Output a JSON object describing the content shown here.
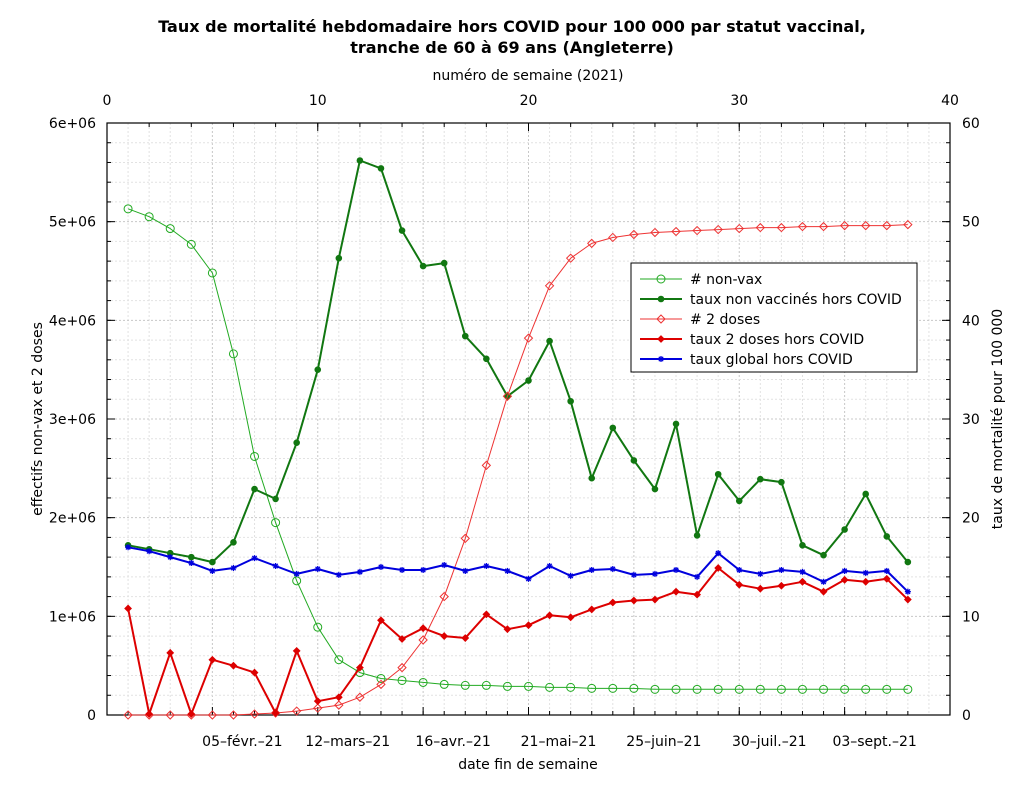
{
  "chart_data": {
    "type": "line",
    "title_line1": "Taux de mortalité hebdomadaire hors COVID pour 100 000 par statut vaccinal,",
    "title_line2": "tranche de 60 à 69 ans (Angleterre)",
    "top_xlabel": "numéro de semaine (2021)",
    "xlabel": "date fin de semaine",
    "ylabel_left": "effectifs non-vax et 2 doses",
    "ylabel_right": "taux de mortalité pour 100 000",
    "xlim": [
      0,
      40
    ],
    "ylim_left": [
      0,
      6000000
    ],
    "ylim_right": [
      0,
      60
    ],
    "top_ticks": [
      "0",
      "10",
      "20",
      "30",
      "40"
    ],
    "left_ticks": [
      "0",
      "1e+06",
      "2e+06",
      "3e+06",
      "4e+06",
      "5e+06",
      "6e+06"
    ],
    "right_ticks": [
      "0",
      "10",
      "20",
      "30",
      "40",
      "50",
      "60"
    ],
    "bottom_ticks": [
      {
        "week": 5,
        "label": "05–févr.–21"
      },
      {
        "week": 10,
        "label": "12–mars–21"
      },
      {
        "week": 15,
        "label": "16–avr.–21"
      },
      {
        "week": 20,
        "label": "21–mai–21"
      },
      {
        "week": 25,
        "label": "25–juin–21"
      },
      {
        "week": 30,
        "label": "30–juil.–21"
      },
      {
        "week": 35,
        "label": "03–sept.–21"
      }
    ],
    "grid": true,
    "legend_position": "right-center",
    "weeks": [
      1,
      2,
      3,
      4,
      5,
      6,
      7,
      8,
      9,
      10,
      11,
      12,
      13,
      14,
      15,
      16,
      17,
      18,
      19,
      20,
      21,
      22,
      23,
      24,
      25,
      26,
      27,
      28,
      29,
      30,
      31,
      32,
      33,
      34,
      35,
      36,
      37,
      38
    ],
    "series": [
      {
        "name": "# non-vax",
        "axis": "left",
        "color": "#22aa22",
        "marker": "circle-open",
        "width": 1,
        "values": [
          5130000,
          5050000,
          4930000,
          4770000,
          4480000,
          3660000,
          2620000,
          1950000,
          1360000,
          890000,
          560000,
          430000,
          370000,
          350000,
          330000,
          310000,
          300000,
          300000,
          290000,
          290000,
          280000,
          280000,
          270000,
          270000,
          270000,
          260000,
          260000,
          260000,
          260000,
          260000,
          260000,
          260000,
          260000,
          260000,
          260000,
          260000,
          260000,
          260000
        ]
      },
      {
        "name": "taux non vaccinés hors COVID",
        "axis": "right",
        "color": "#117711",
        "marker": "dot",
        "width": 2,
        "values": [
          17.2,
          16.8,
          16.4,
          16.0,
          15.5,
          17.5,
          22.9,
          21.9,
          27.6,
          35.0,
          46.3,
          56.2,
          55.4,
          49.1,
          45.5,
          45.8,
          38.4,
          36.1,
          32.3,
          33.9,
          37.9,
          31.8,
          24.0,
          29.1,
          25.8,
          22.9,
          29.5,
          18.2,
          24.4,
          21.7,
          23.9,
          23.6,
          17.2,
          16.2,
          18.8,
          22.4,
          18.1,
          15.5
        ]
      },
      {
        "name": "# 2 doses",
        "axis": "left",
        "color": "#ee3333",
        "marker": "diamond-open",
        "width": 1,
        "values": [
          0,
          0,
          0,
          0,
          0,
          0,
          10000,
          20000,
          40000,
          70000,
          100000,
          180000,
          310000,
          480000,
          760000,
          1200000,
          1790000,
          2530000,
          3230000,
          3820000,
          4350000,
          4630000,
          4780000,
          4840000,
          4870000,
          4890000,
          4900000,
          4910000,
          4920000,
          4930000,
          4940000,
          4940000,
          4950000,
          4950000,
          4960000,
          4960000,
          4960000,
          4970000
        ]
      },
      {
        "name": "taux 2 doses hors COVID",
        "axis": "right",
        "color": "#dd0000",
        "marker": "diamond",
        "width": 2,
        "values": [
          10.8,
          0.1,
          6.3,
          0.1,
          5.6,
          5.0,
          4.3,
          0.2,
          6.5,
          1.4,
          1.8,
          4.8,
          9.6,
          7.7,
          8.8,
          8.0,
          7.8,
          10.2,
          8.7,
          9.1,
          10.1,
          9.9,
          10.7,
          11.4,
          11.6,
          11.7,
          12.5,
          12.2,
          14.9,
          13.2,
          12.8,
          13.1,
          13.5,
          12.5,
          13.7,
          13.5,
          13.8,
          11.7
        ]
      },
      {
        "name": "taux global hors COVID",
        "axis": "right",
        "color": "#0000dd",
        "marker": "star",
        "width": 2,
        "values": [
          17.0,
          16.6,
          16.0,
          15.4,
          14.6,
          14.9,
          15.9,
          15.1,
          14.3,
          14.8,
          14.2,
          14.5,
          15.0,
          14.7,
          14.7,
          15.2,
          14.6,
          15.1,
          14.6,
          13.8,
          15.1,
          14.1,
          14.7,
          14.8,
          14.2,
          14.3,
          14.7,
          14.0,
          16.4,
          14.7,
          14.3,
          14.7,
          14.5,
          13.5,
          14.6,
          14.4,
          14.6,
          12.5
        ]
      }
    ]
  }
}
